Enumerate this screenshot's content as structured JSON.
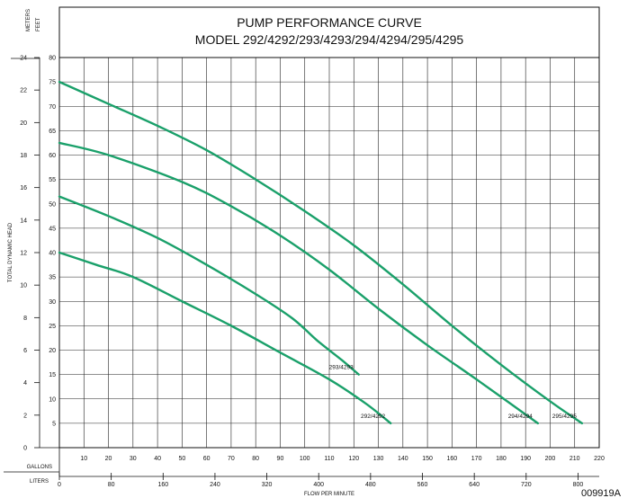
{
  "chart_data": {
    "type": "line",
    "title_line1": "PUMP PERFORMANCE CURVE",
    "title_line2": "MODEL 292/4292/293/4293/294/4294/295/4295",
    "ylabel": "TOTAL DYNAMIC HEAD",
    "xlabel": "FLOW PER MINUTE",
    "meters_label": "METERS",
    "feet_label": "FEET",
    "gallons_label": "GALLONS",
    "liters_label": "LITERS",
    "figure_code": "009919A",
    "x_unit": "gallons per minute",
    "y_unit": "feet",
    "xlim": [
      0,
      220
    ],
    "ylim_feet": [
      0,
      80
    ],
    "ylim_meters": [
      0,
      24
    ],
    "grid": true,
    "gallons_ticks": [
      10,
      20,
      30,
      40,
      50,
      60,
      70,
      80,
      90,
      100,
      110,
      120,
      130,
      140,
      150,
      160,
      170,
      180,
      190,
      200,
      210,
      220
    ],
    "liters_ticks": [
      0,
      80,
      160,
      240,
      320,
      400,
      480,
      560,
      640,
      720,
      800
    ],
    "feet_ticks": [
      5,
      10,
      15,
      20,
      25,
      30,
      35,
      40,
      45,
      50,
      55,
      60,
      65,
      70,
      75,
      80
    ],
    "meters_ticks": [
      0,
      2,
      4,
      6,
      8,
      10,
      12,
      14,
      16,
      18,
      20,
      22,
      24
    ],
    "series": [
      {
        "name": "292/4292",
        "x": [
          0,
          15,
          30,
          50,
          70,
          90,
          110,
          125,
          135
        ],
        "y": [
          40,
          37.5,
          35,
          30,
          25,
          19.5,
          14,
          9,
          5
        ]
      },
      {
        "name": "293/4293",
        "x": [
          0,
          20,
          40,
          60,
          80,
          95,
          105,
          115,
          122
        ],
        "y": [
          51.5,
          47.5,
          43,
          37.5,
          31.5,
          26.5,
          22,
          18,
          15
        ]
      },
      {
        "name": "294/4294",
        "x": [
          0,
          20,
          50,
          70,
          90,
          110,
          130,
          150,
          170,
          195
        ],
        "y": [
          62.5,
          60,
          54.5,
          49.5,
          43.5,
          36.5,
          28.5,
          21,
          14,
          5
        ]
      },
      {
        "name": "295/4295",
        "x": [
          0,
          20,
          40,
          60,
          80,
          100,
          120,
          140,
          160,
          180,
          200,
          213
        ],
        "y": [
          75,
          70.5,
          66,
          61,
          55,
          48.5,
          41.5,
          33.5,
          25,
          17,
          9.5,
          5
        ]
      }
    ],
    "series_color": "#1aa06a"
  }
}
